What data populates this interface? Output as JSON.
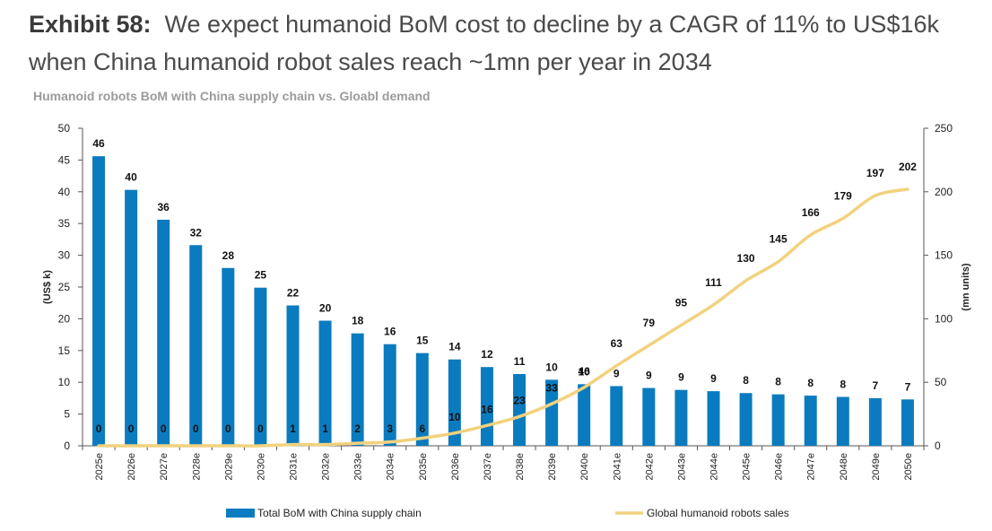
{
  "header": {
    "exhibit": "Exhibit 58:",
    "headline": "We expect humanoid BoM cost to decline by a CAGR of 11% to US$16k when China humanoid robot sales reach ~1mn per year in 2034"
  },
  "chart_data": {
    "type": "bar+line",
    "title": "Humanoid robots BoM with China supply chain vs. Gloabl demand",
    "categories": [
      "2025e",
      "2026e",
      "2027e",
      "2028e",
      "2029e",
      "2030e",
      "2031e",
      "2032e",
      "2033e",
      "2034e",
      "2035e",
      "2036e",
      "2037e",
      "2038e",
      "2039e",
      "2040e",
      "2041e",
      "2042e",
      "2043e",
      "2044e",
      "2045e",
      "2046e",
      "2047e",
      "2048e",
      "2049e",
      "2050e"
    ],
    "y_left": {
      "label": "(US$ k)",
      "ylim": [
        0,
        50
      ],
      "ticks": [
        0,
        5,
        10,
        15,
        20,
        25,
        30,
        35,
        40,
        45,
        50
      ]
    },
    "y_right": {
      "label": "(mn units)",
      "ylim": [
        0,
        250
      ],
      "ticks": [
        0,
        50,
        100,
        150,
        200,
        250
      ]
    },
    "series": [
      {
        "name": "Total BoM with China supply chain",
        "type": "bar",
        "axis": "left",
        "color": "#0b7bbf",
        "values": [
          45.6,
          40.3,
          35.6,
          31.6,
          28.0,
          24.9,
          22.1,
          19.7,
          17.7,
          16.0,
          14.6,
          13.6,
          12.4,
          11.3,
          10.4,
          9.7,
          9.4,
          9.1,
          8.8,
          8.6,
          8.3,
          8.1,
          7.9,
          7.7,
          7.5,
          7.3
        ],
        "labels": [
          "46",
          "40",
          "36",
          "32",
          "28",
          "25",
          "22",
          "20",
          "18",
          "16",
          "15",
          "14",
          "12",
          "11",
          "10",
          "10",
          "9",
          "9",
          "9",
          "9",
          "8",
          "8",
          "8",
          "8",
          "7",
          "7"
        ]
      },
      {
        "name": "Global humanoid robots sales",
        "type": "line",
        "axis": "right",
        "color": "#f2d27e",
        "values": [
          0,
          0,
          0,
          0,
          0,
          0,
          1,
          1,
          2,
          3,
          6,
          10,
          16,
          23,
          33,
          46,
          63,
          79,
          95,
          111,
          130,
          145,
          166,
          179,
          197,
          202
        ],
        "labels": [
          "0",
          "0",
          "0",
          "0",
          "0",
          "0",
          "1",
          "1",
          "2",
          "3",
          "6",
          "10",
          "16",
          "23",
          "33",
          "46",
          "63",
          "79",
          "95",
          "111",
          "130",
          "145",
          "166",
          "179",
          "197",
          "202"
        ]
      }
    ],
    "legend_position": "bottom",
    "grid": false
  }
}
